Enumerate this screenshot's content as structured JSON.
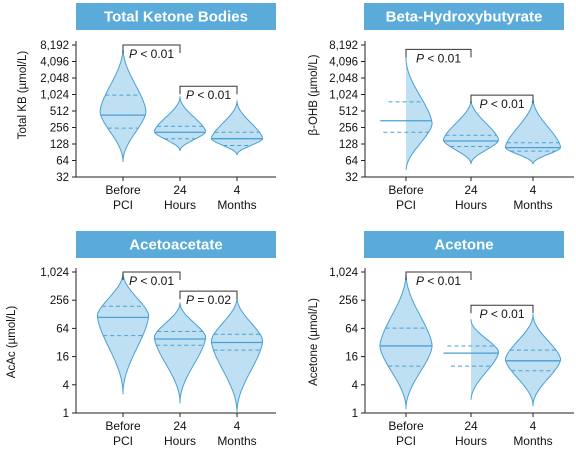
{
  "colors": {
    "title_bg": "#5aabd9",
    "violin_fill": "#bfe0f2",
    "violin_stroke": "#4a9fd4",
    "axis": "#222222",
    "bracket": "#333333"
  },
  "chart_data": [
    {
      "type": "violin",
      "title": "Total Ketone Bodies",
      "ylabel": "Total KB (µmol/L)",
      "scale": "log2",
      "ylim": [
        32,
        8192
      ],
      "yticks": [
        32,
        64,
        128,
        256,
        512,
        1024,
        2048,
        4096,
        8192
      ],
      "ytick_labels": [
        "32",
        "64",
        "128",
        "256",
        "512",
        "1,024",
        "2,048",
        "4,096",
        "8,192"
      ],
      "categories": [
        "Before\nPCI",
        "24\nHours",
        "4\nMonths"
      ],
      "series": [
        {
          "min": 60,
          "max": 7600,
          "q1": 250,
          "median": 430,
          "q3": 1000,
          "peak": 500,
          "width": 0.85
        },
        {
          "min": 95,
          "max": 950,
          "q1": 160,
          "median": 210,
          "q3": 270,
          "peak": 215,
          "width": 0.95
        },
        {
          "min": 80,
          "max": 800,
          "q1": 120,
          "median": 160,
          "q3": 210,
          "peak": 160,
          "width": 0.95
        }
      ],
      "comparisons": [
        {
          "from": 0,
          "to": 1,
          "label": "P < 0.01",
          "y": 8192
        },
        {
          "from": 1,
          "to": 2,
          "label": "P < 0.01",
          "y": 1450
        }
      ]
    },
    {
      "type": "violin",
      "title": "Beta-Hydroxybutyrate",
      "ylabel": "β-OHB (µmol/L)",
      "scale": "log2",
      "ylim": [
        32,
        8192
      ],
      "yticks": [
        32,
        64,
        128,
        256,
        512,
        1024,
        2048,
        4096,
        8192
      ],
      "ytick_labels": [
        "32",
        "64",
        "128",
        "256",
        "512",
        "1,024",
        "2,048",
        "4,096",
        "8,192"
      ],
      "categories": [
        "Before\nPCI",
        "24\nHours",
        "4\nMonths"
      ],
      "series": [
        {
          "min": 40,
          "max": 5000,
          "q1": 210,
          "median": 340,
          "q3": 750,
          "peak": 300,
          "width": 0.9
        },
        {
          "min": 55,
          "max": 850,
          "q1": 115,
          "median": 145,
          "q3": 185,
          "peak": 150,
          "width": 0.95
        },
        {
          "min": 55,
          "max": 900,
          "q1": 95,
          "median": 110,
          "q3": 135,
          "peak": 110,
          "width": 0.95
        }
      ],
      "comparisons": [
        {
          "from": 0,
          "to": 1,
          "label": "P < 0.01",
          "y": 6800
        },
        {
          "from": 1,
          "to": 2,
          "label": "P < 0.01",
          "y": 1000
        }
      ]
    },
    {
      "type": "violin",
      "title": "Acetoacetate",
      "ylabel": "AcAc (µmol/L)",
      "scale": "log4",
      "ylim": [
        1,
        1024
      ],
      "yticks": [
        1,
        4,
        16,
        64,
        256,
        1024
      ],
      "ytick_labels": [
        "1",
        "4",
        "16",
        "64",
        "256",
        "1,024"
      ],
      "categories": [
        "Before\nPCI",
        "24\nHours",
        "4\nMonths"
      ],
      "series": [
        {
          "min": 2.5,
          "max": 1000,
          "q1": 45,
          "median": 110,
          "q3": 190,
          "peak": 120,
          "width": 0.95
        },
        {
          "min": 1.6,
          "max": 230,
          "q1": 28,
          "median": 38,
          "q3": 55,
          "peak": 42,
          "width": 0.95
        },
        {
          "min": 1.0,
          "max": 300,
          "q1": 22,
          "median": 32,
          "q3": 48,
          "peak": 35,
          "width": 0.95
        }
      ],
      "comparisons": [
        {
          "from": 0,
          "to": 1,
          "label": "P < 0.01",
          "y": 1024
        },
        {
          "from": 1,
          "to": 2,
          "label": "P = 0.02",
          "y": 400
        }
      ]
    },
    {
      "type": "violin",
      "title": "Acetone",
      "ylabel": "Acetone (µmol/L)",
      "scale": "log4",
      "ylim": [
        1,
        1024
      ],
      "yticks": [
        1,
        4,
        16,
        64,
        256,
        1024
      ],
      "ytick_labels": [
        "1",
        "4",
        "16",
        "64",
        "256",
        "1,024"
      ],
      "categories": [
        "Before\nPCI",
        "24\nHours",
        "4\nMonths"
      ],
      "series": [
        {
          "min": 1.2,
          "max": 1000,
          "q1": 10,
          "median": 27,
          "q3": 65,
          "peak": 27,
          "width": 0.9
        },
        {
          "min": 1.8,
          "max": 100,
          "q1": 10,
          "median": 19,
          "q3": 27,
          "peak": 20,
          "width": 0.95
        },
        {
          "min": 1.4,
          "max": 130,
          "q1": 8,
          "median": 13,
          "q3": 22,
          "peak": 14,
          "width": 0.95
        }
      ],
      "comparisons": [
        {
          "from": 0,
          "to": 1,
          "label": "P < 0.01",
          "y": 1024
        },
        {
          "from": 1,
          "to": 2,
          "label": "P < 0.01",
          "y": 200
        }
      ]
    }
  ]
}
